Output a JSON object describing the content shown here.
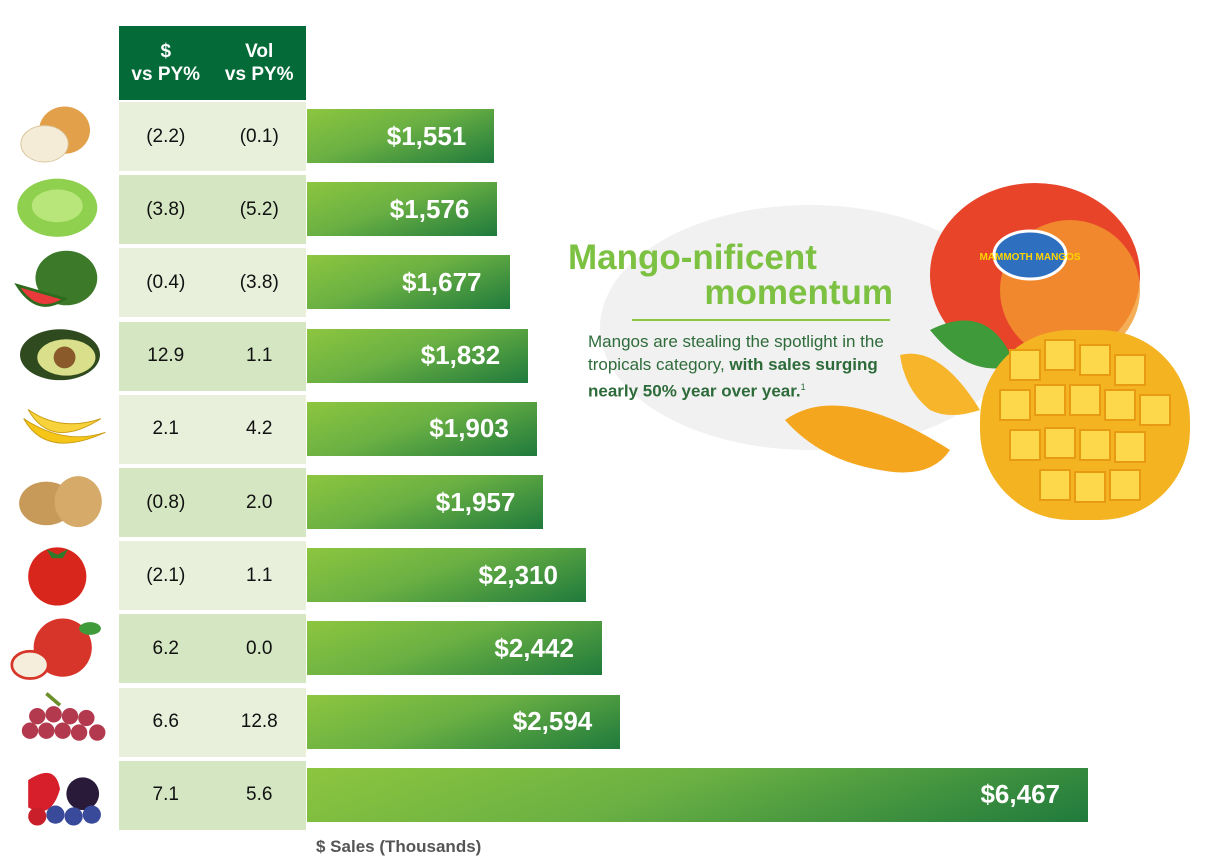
{
  "chart_data": {
    "type": "bar",
    "orientation": "horizontal",
    "xlabel": "$ Sales (Thousands)",
    "xlim": [
      0,
      6467
    ],
    "grid": false,
    "table_headers": [
      "$\nvs PY%",
      "Vol\nvs PY%"
    ],
    "rows": [
      {
        "icon": "onion-icon",
        "dollar_vs_py": "(2.2)",
        "vol_vs_py": "(0.1)",
        "value": 1551,
        "label": "$1,551"
      },
      {
        "icon": "lettuce-icon",
        "dollar_vs_py": "(3.8)",
        "vol_vs_py": "(5.2)",
        "value": 1576,
        "label": "$1,576"
      },
      {
        "icon": "watermelon-icon",
        "dollar_vs_py": "(0.4)",
        "vol_vs_py": "(3.8)",
        "value": 1677,
        "label": "$1,677"
      },
      {
        "icon": "avocado-icon",
        "dollar_vs_py": "12.9",
        "vol_vs_py": "1.1",
        "value": 1832,
        "label": "$1,832"
      },
      {
        "icon": "banana-icon",
        "dollar_vs_py": "2.1",
        "vol_vs_py": "4.2",
        "value": 1903,
        "label": "$1,903"
      },
      {
        "icon": "potato-icon",
        "dollar_vs_py": "(0.8)",
        "vol_vs_py": "2.0",
        "value": 1957,
        "label": "$1,957"
      },
      {
        "icon": "tomato-icon",
        "dollar_vs_py": "(2.1)",
        "vol_vs_py": "1.1",
        "value": 2310,
        "label": "$2,310"
      },
      {
        "icon": "apple-icon",
        "dollar_vs_py": "6.2",
        "vol_vs_py": "0.0",
        "value": 2442,
        "label": "$2,442"
      },
      {
        "icon": "grapes-icon",
        "dollar_vs_py": "6.6",
        "vol_vs_py": "12.8",
        "value": 2594,
        "label": "$2,594"
      },
      {
        "icon": "berries-icon",
        "dollar_vs_py": "7.1",
        "vol_vs_py": "5.6",
        "value": 6467,
        "label": "$6,467"
      }
    ]
  },
  "callout": {
    "title_line1": "Mango-nificent",
    "title_line2": "momentum",
    "body_regular": "Mangos are stealing the spotlight in the tropicals category, ",
    "body_bold": "with sales surging nearly 50% year over year.",
    "footnote": "1",
    "sticker_text": "MAMMOTH MANGOS"
  },
  "colors": {
    "header": "#046a38",
    "bar_light": "#8dc63f",
    "bar_dark": "#1f7a3c",
    "row_light": "#e8f0dc",
    "row_dark": "#d4e6c2",
    "title": "#7dc142",
    "body": "#2e6b3a"
  }
}
